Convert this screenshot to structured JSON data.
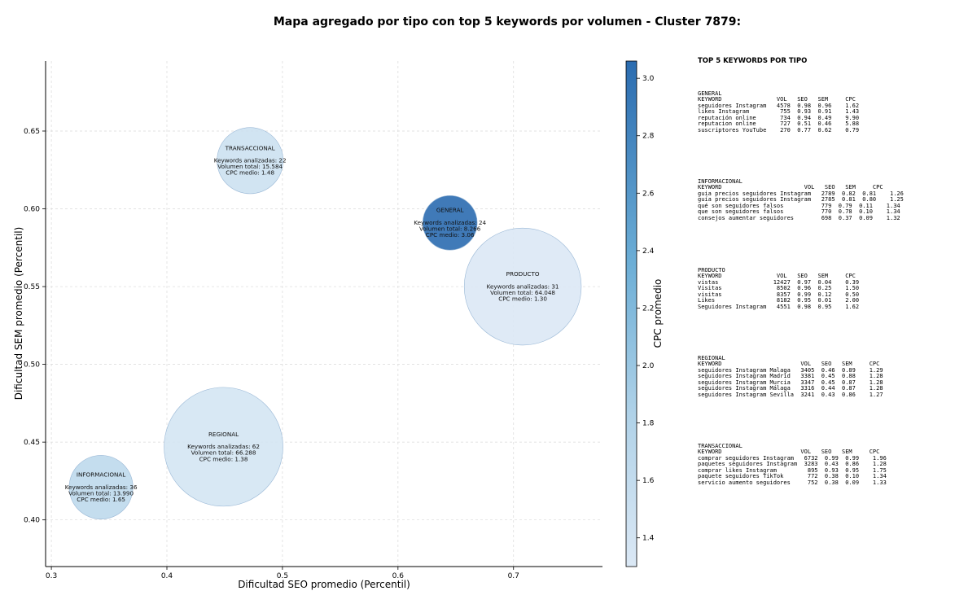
{
  "figure": {
    "title": "Mapa agregado por tipo con top 5 keywords por volumen - Cluster 7879:"
  },
  "chart_data": {
    "type": "scatter",
    "title": "Mapa agregado por tipo con top 5 keywords por volumen - Cluster 7879:",
    "xlabel": "Dificultad SEO promedio (Percentil)",
    "ylabel": "Dificultad SEM promedio (Percentil)",
    "xlim": [
      0.295,
      0.777
    ],
    "ylim": [
      0.37,
      0.695
    ],
    "xticks": [
      0.3,
      0.4,
      0.5,
      0.6,
      0.7
    ],
    "yticks": [
      0.4,
      0.45,
      0.5,
      0.55,
      0.6,
      0.65
    ],
    "xtick_labels": [
      "0.3",
      "0.4",
      "0.5",
      "0.6",
      "0.7"
    ],
    "ytick_labels": [
      "0.40",
      "0.45",
      "0.50",
      "0.55",
      "0.60",
      "0.65"
    ],
    "grid": true,
    "colorbar": {
      "label": "CPC promedio",
      "min": 1.3,
      "max": 3.06,
      "ticks": [
        1.4,
        1.6,
        1.8,
        2.0,
        2.2,
        2.4,
        2.6,
        2.8,
        3.0
      ],
      "tick_labels": [
        "1.4",
        "1.6",
        "1.8",
        "2.0",
        "2.2",
        "2.4",
        "2.6",
        "2.8",
        "3.0"
      ]
    },
    "points": [
      {
        "tipo": "TRANSACCIONAL",
        "x": 0.472,
        "y": 0.631,
        "keywords_line": "Keywords analizadas: 22",
        "volumen_line": "Volumen total: 15.584",
        "cpc_line": "CPC medio: 1.48",
        "keywords": 22,
        "volumen": 15584,
        "cpc": 1.48
      },
      {
        "tipo": "GENERAL",
        "x": 0.645,
        "y": 0.591,
        "keywords_line": "Keywords analizadas: 24",
        "volumen_line": "Volumen total: 8.266",
        "cpc_line": "CPC medio: 3.06",
        "keywords": 24,
        "volumen": 8266,
        "cpc": 3.06
      },
      {
        "tipo": "PRODUCTO",
        "x": 0.708,
        "y": 0.55,
        "keywords_line": "Keywords analizadas: 31",
        "volumen_line": "Volumen total: 64.048",
        "cpc_line": "CPC medio: 1.30",
        "keywords": 31,
        "volumen": 64048,
        "cpc": 1.3
      },
      {
        "tipo": "REGIONAL",
        "x": 0.449,
        "y": 0.447,
        "keywords_line": "Keywords analizadas: 62",
        "volumen_line": "Volumen total: 66.288",
        "cpc_line": "CPC medio: 1.38",
        "keywords": 62,
        "volumen": 66288,
        "cpc": 1.38
      },
      {
        "tipo": "INFORMACIONAL",
        "x": 0.343,
        "y": 0.421,
        "keywords_line": "Keywords analizadas: 36",
        "volumen_line": "Volumen total: 13.990",
        "cpc_line": "CPC medio: 1.65",
        "keywords": 36,
        "volumen": 13990,
        "cpc": 1.65
      }
    ]
  },
  "keywords_panel": {
    "title": "TOP 5 KEYWORDS POR TIPO",
    "blocks": [
      {
        "name": "GENERAL",
        "lines": [
          "GENERAL",
          "KEYWORD                VOL   SEO   SEM     CPC",
          "seguidores Instagram   4578  0.98  0.96    1.62",
          "likes Instagram         755  0.93  0.91    1.43",
          "reputación online       734  0.94  0.49    9.90",
          "reputacion online       727  0.51  0.46    5.88",
          "suscriptores YouTube    270  0.77  0.62    0.79"
        ]
      },
      {
        "name": "INFORMACIONAL",
        "lines": [
          "INFORMACIONAL",
          "KEYWORD                        VOL   SEO   SEM     CPC",
          "guia precios seguidores Instagram   2789  0.82  0.81    1.26",
          "guía precios seguidores Instagram   2785  0.81  0.80    1.25",
          "qué son seguidores falsos           779  0.79  0.11    1.34",
          "que son seguidores falsos           770  0.78  0.10    1.34",
          "consejos aumentar seguidores        698  0.37  0.09    1.32"
        ]
      },
      {
        "name": "PRODUCTO",
        "lines": [
          "PRODUCTO",
          "KEYWORD                VOL   SEO   SEM     CPC",
          "vistas                12427  0.97  0.04    0.39",
          "Visitas                8502  0.96  0.25    1.50",
          "visitas                8357  0.99  0.12    0.50",
          "Likes                  8182  0.95  0.01    2.00",
          "Seguidores Instagram   4551  0.98  0.95    1.62"
        ]
      },
      {
        "name": "REGIONAL",
        "lines": [
          "REGIONAL",
          "KEYWORD                       VOL   SEO   SEM     CPC",
          "seguidores Instagram Malaga   3405  0.46  0.89    1.29",
          "seguidores Instagram Madrid   3381  0.45  0.88    1.28",
          "seguidores Instagram Murcia   3347  0.45  0.87    1.28",
          "seguidores Instagram Málaga   3316  0.44  0.87    1.28",
          "seguidores Instagram Sevilla  3241  0.43  0.86    1.27"
        ]
      },
      {
        "name": "TRANSACCIONAL",
        "lines": [
          "TRANSACCIONAL",
          "KEYWORD                       VOL   SEO   SEM     CPC",
          "comprar seguidores Instagram   6732  0.99  0.99    1.96",
          "paquetes seguidores Instagram  3283  0.43  0.86    1.28",
          "comprar likes Instagram         895  0.93  0.95    1.75",
          "paquete seguidores TikTok       772  0.38  0.10    1.34",
          "servicio aumento seguidores     752  0.38  0.09    1.33"
        ]
      }
    ]
  }
}
